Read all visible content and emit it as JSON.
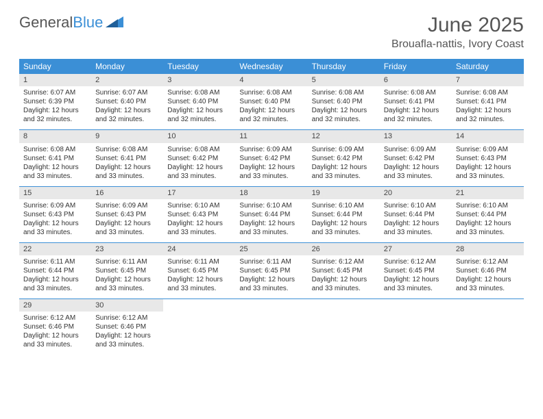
{
  "logo": {
    "text1": "General",
    "text2": "Blue"
  },
  "title": "June 2025",
  "location": "Brouafla-nattis, Ivory Coast",
  "dayNames": [
    "Sunday",
    "Monday",
    "Tuesday",
    "Wednesday",
    "Thursday",
    "Friday",
    "Saturday"
  ],
  "colors": {
    "header_bg": "#3b8fd6",
    "header_text": "#ffffff",
    "daynum_bg": "#e8e8e8",
    "border": "#3b8fd6",
    "logo_gray": "#555555",
    "logo_blue": "#3b8fd6"
  },
  "days": [
    {
      "n": "1",
      "sr": "Sunrise: 6:07 AM",
      "ss": "Sunset: 6:39 PM",
      "dl": "Daylight: 12 hours and 32 minutes."
    },
    {
      "n": "2",
      "sr": "Sunrise: 6:07 AM",
      "ss": "Sunset: 6:40 PM",
      "dl": "Daylight: 12 hours and 32 minutes."
    },
    {
      "n": "3",
      "sr": "Sunrise: 6:08 AM",
      "ss": "Sunset: 6:40 PM",
      "dl": "Daylight: 12 hours and 32 minutes."
    },
    {
      "n": "4",
      "sr": "Sunrise: 6:08 AM",
      "ss": "Sunset: 6:40 PM",
      "dl": "Daylight: 12 hours and 32 minutes."
    },
    {
      "n": "5",
      "sr": "Sunrise: 6:08 AM",
      "ss": "Sunset: 6:40 PM",
      "dl": "Daylight: 12 hours and 32 minutes."
    },
    {
      "n": "6",
      "sr": "Sunrise: 6:08 AM",
      "ss": "Sunset: 6:41 PM",
      "dl": "Daylight: 12 hours and 32 minutes."
    },
    {
      "n": "7",
      "sr": "Sunrise: 6:08 AM",
      "ss": "Sunset: 6:41 PM",
      "dl": "Daylight: 12 hours and 32 minutes."
    },
    {
      "n": "8",
      "sr": "Sunrise: 6:08 AM",
      "ss": "Sunset: 6:41 PM",
      "dl": "Daylight: 12 hours and 33 minutes."
    },
    {
      "n": "9",
      "sr": "Sunrise: 6:08 AM",
      "ss": "Sunset: 6:41 PM",
      "dl": "Daylight: 12 hours and 33 minutes."
    },
    {
      "n": "10",
      "sr": "Sunrise: 6:08 AM",
      "ss": "Sunset: 6:42 PM",
      "dl": "Daylight: 12 hours and 33 minutes."
    },
    {
      "n": "11",
      "sr": "Sunrise: 6:09 AM",
      "ss": "Sunset: 6:42 PM",
      "dl": "Daylight: 12 hours and 33 minutes."
    },
    {
      "n": "12",
      "sr": "Sunrise: 6:09 AM",
      "ss": "Sunset: 6:42 PM",
      "dl": "Daylight: 12 hours and 33 minutes."
    },
    {
      "n": "13",
      "sr": "Sunrise: 6:09 AM",
      "ss": "Sunset: 6:42 PM",
      "dl": "Daylight: 12 hours and 33 minutes."
    },
    {
      "n": "14",
      "sr": "Sunrise: 6:09 AM",
      "ss": "Sunset: 6:43 PM",
      "dl": "Daylight: 12 hours and 33 minutes."
    },
    {
      "n": "15",
      "sr": "Sunrise: 6:09 AM",
      "ss": "Sunset: 6:43 PM",
      "dl": "Daylight: 12 hours and 33 minutes."
    },
    {
      "n": "16",
      "sr": "Sunrise: 6:09 AM",
      "ss": "Sunset: 6:43 PM",
      "dl": "Daylight: 12 hours and 33 minutes."
    },
    {
      "n": "17",
      "sr": "Sunrise: 6:10 AM",
      "ss": "Sunset: 6:43 PM",
      "dl": "Daylight: 12 hours and 33 minutes."
    },
    {
      "n": "18",
      "sr": "Sunrise: 6:10 AM",
      "ss": "Sunset: 6:44 PM",
      "dl": "Daylight: 12 hours and 33 minutes."
    },
    {
      "n": "19",
      "sr": "Sunrise: 6:10 AM",
      "ss": "Sunset: 6:44 PM",
      "dl": "Daylight: 12 hours and 33 minutes."
    },
    {
      "n": "20",
      "sr": "Sunrise: 6:10 AM",
      "ss": "Sunset: 6:44 PM",
      "dl": "Daylight: 12 hours and 33 minutes."
    },
    {
      "n": "21",
      "sr": "Sunrise: 6:10 AM",
      "ss": "Sunset: 6:44 PM",
      "dl": "Daylight: 12 hours and 33 minutes."
    },
    {
      "n": "22",
      "sr": "Sunrise: 6:11 AM",
      "ss": "Sunset: 6:44 PM",
      "dl": "Daylight: 12 hours and 33 minutes."
    },
    {
      "n": "23",
      "sr": "Sunrise: 6:11 AM",
      "ss": "Sunset: 6:45 PM",
      "dl": "Daylight: 12 hours and 33 minutes."
    },
    {
      "n": "24",
      "sr": "Sunrise: 6:11 AM",
      "ss": "Sunset: 6:45 PM",
      "dl": "Daylight: 12 hours and 33 minutes."
    },
    {
      "n": "25",
      "sr": "Sunrise: 6:11 AM",
      "ss": "Sunset: 6:45 PM",
      "dl": "Daylight: 12 hours and 33 minutes."
    },
    {
      "n": "26",
      "sr": "Sunrise: 6:12 AM",
      "ss": "Sunset: 6:45 PM",
      "dl": "Daylight: 12 hours and 33 minutes."
    },
    {
      "n": "27",
      "sr": "Sunrise: 6:12 AM",
      "ss": "Sunset: 6:45 PM",
      "dl": "Daylight: 12 hours and 33 minutes."
    },
    {
      "n": "28",
      "sr": "Sunrise: 6:12 AM",
      "ss": "Sunset: 6:46 PM",
      "dl": "Daylight: 12 hours and 33 minutes."
    },
    {
      "n": "29",
      "sr": "Sunrise: 6:12 AM",
      "ss": "Sunset: 6:46 PM",
      "dl": "Daylight: 12 hours and 33 minutes."
    },
    {
      "n": "30",
      "sr": "Sunrise: 6:12 AM",
      "ss": "Sunset: 6:46 PM",
      "dl": "Daylight: 12 hours and 33 minutes."
    }
  ]
}
